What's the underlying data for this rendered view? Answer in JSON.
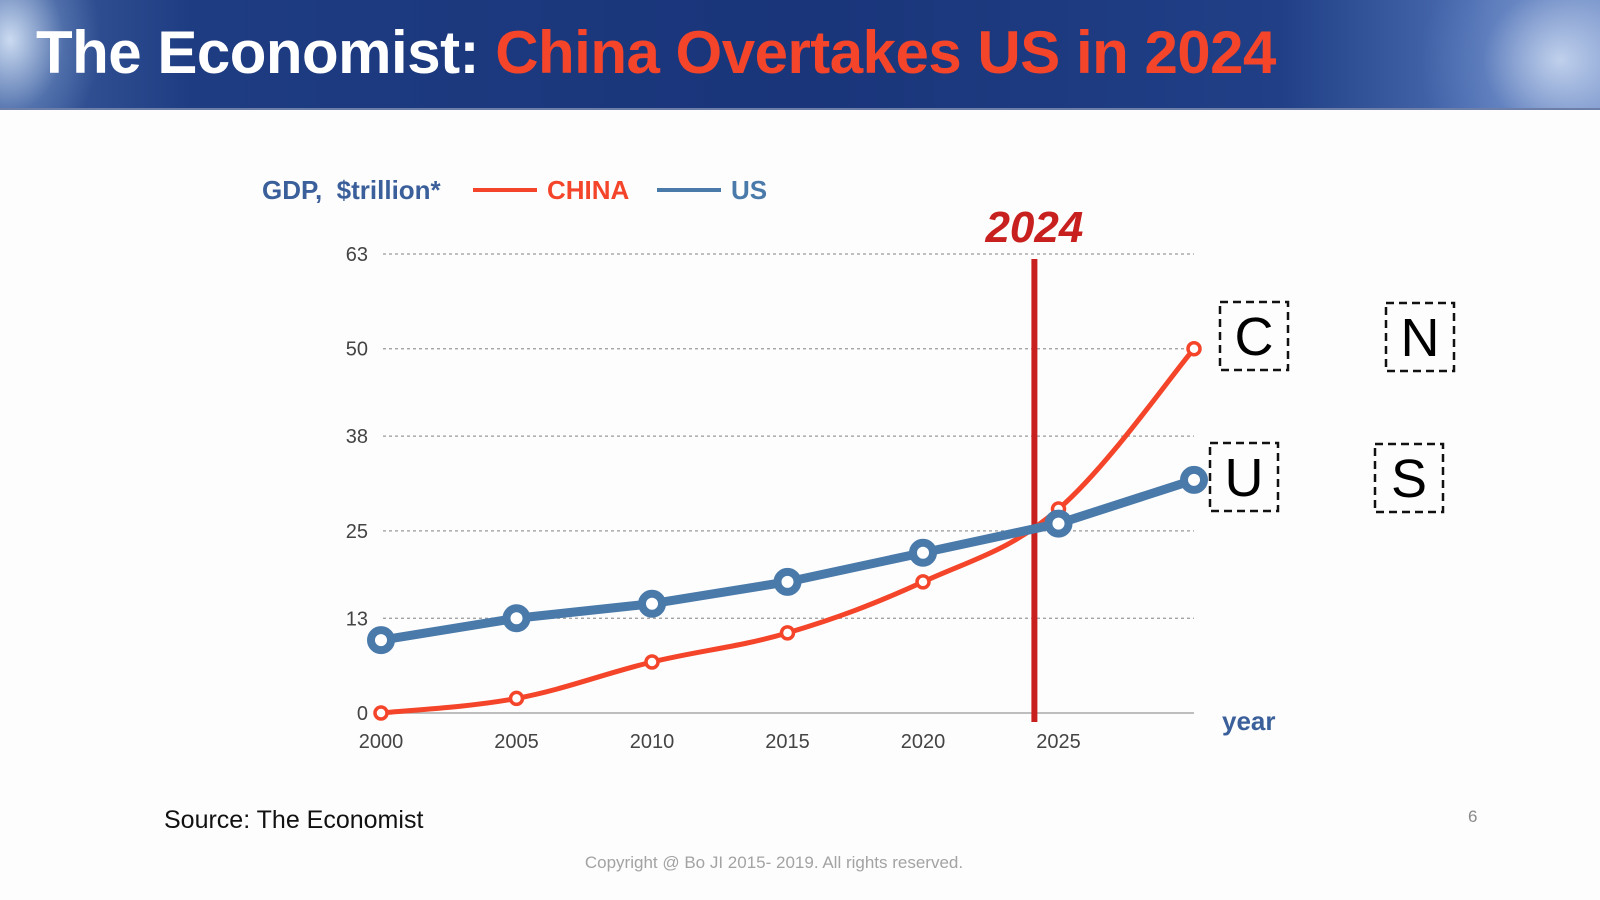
{
  "slide": {
    "title_part1": "The Economist:",
    "title_part2": "China Overtakes US in 2024",
    "source": "Source: The Economist",
    "page_number": "6",
    "copyright": "Copyright @ Bo JI 2015- 2019. All rights reserved.",
    "colors": {
      "title_white": "#ffffff",
      "title_accent": "#f4452a",
      "china": "#f4452a",
      "us": "#4a7aaa",
      "marker_line": "#c8201e",
      "label_blue": "#3a5f9a"
    }
  },
  "chart_data": {
    "type": "line",
    "title": "GDP,  $trillion*",
    "xlabel": "year",
    "ylabel": "GDP, $trillion",
    "x": [
      2000,
      2005,
      2010,
      2015,
      2020,
      2025,
      2030
    ],
    "x_tick_labels": [
      "2000",
      "2005",
      "2010",
      "2015",
      "2020",
      "2025"
    ],
    "y_ticks": [
      0,
      13,
      25,
      38,
      50,
      63
    ],
    "ylim": [
      0,
      63
    ],
    "xlim": [
      2000,
      2030
    ],
    "grid": "horizontal-dashed",
    "legend": "top-left",
    "series": [
      {
        "name": "CHINA",
        "color": "#f4452a",
        "values": [
          0,
          2,
          7,
          11,
          18,
          28,
          50
        ]
      },
      {
        "name": "US",
        "color": "#4a7aaa",
        "values": [
          10,
          13,
          15,
          18,
          22,
          26,
          32
        ]
      }
    ],
    "annotations": {
      "marker_year": 2024,
      "marker_label": "2024",
      "boxed_letters_china": [
        "C",
        "N"
      ],
      "boxed_letters_us": [
        "U",
        "S"
      ]
    }
  }
}
